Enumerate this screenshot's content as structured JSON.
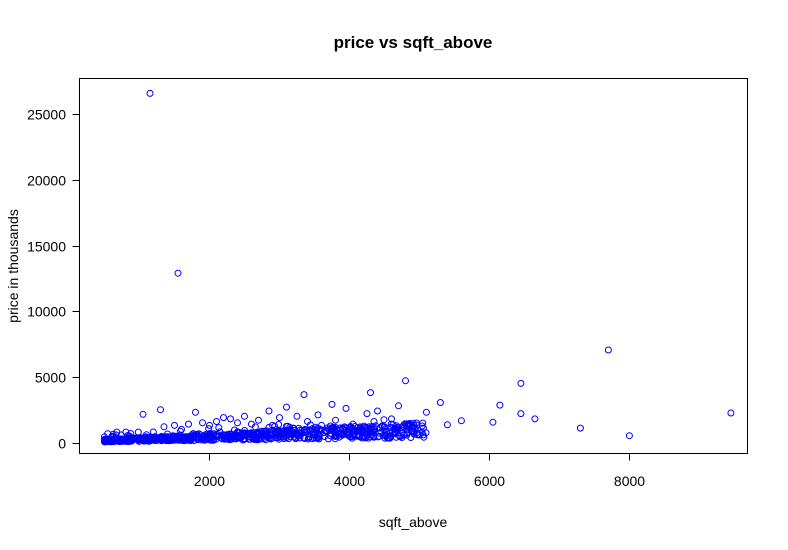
{
  "chart_data": {
    "type": "scatter",
    "title": "price vs sqft_above",
    "xlabel": "sqft_above",
    "ylabel": "price in thousands",
    "xlim": [
      150,
      9680
    ],
    "ylim": [
      -800,
      27700
    ],
    "x_ticks": [
      2000,
      4000,
      6000,
      8000
    ],
    "x_tick_labels": [
      "2000",
      "4000",
      "6000",
      "8000"
    ],
    "y_ticks": [
      0,
      5000,
      10000,
      15000,
      20000,
      25000
    ],
    "y_tick_labels": [
      "0",
      "5000",
      "10000",
      "15000",
      "20000",
      "25000"
    ],
    "grid": false,
    "point_color": "#0000ff",
    "marker": "open-circle",
    "points": [
      [
        1150,
        26600
      ],
      [
        1550,
        12900
      ],
      [
        7700,
        7050
      ],
      [
        4800,
        4700
      ],
      [
        6450,
        4500
      ],
      [
        4300,
        3800
      ],
      [
        3350,
        3650
      ],
      [
        3100,
        2700
      ],
      [
        5300,
        3050
      ],
      [
        6150,
        2850
      ],
      [
        9450,
        2250
      ],
      [
        6450,
        2200
      ],
      [
        6650,
        1800
      ],
      [
        7300,
        1100
      ],
      [
        8000,
        520
      ],
      [
        6050,
        1550
      ],
      [
        5600,
        1650
      ],
      [
        5400,
        1350
      ],
      [
        5100,
        2300
      ],
      [
        4700,
        2800
      ],
      [
        4600,
        1800
      ],
      [
        4950,
        950
      ],
      [
        1300,
        2500
      ],
      [
        1050,
        2150
      ],
      [
        1800,
        2300
      ],
      [
        3950,
        2600
      ],
      [
        3750,
        2900
      ],
      [
        4400,
        2400
      ],
      [
        2850,
        2400
      ],
      [
        3250,
        2000
      ],
      [
        3550,
        2100
      ],
      [
        3800,
        1700
      ],
      [
        4050,
        1400
      ],
      [
        4250,
        2200
      ],
      [
        4500,
        1200
      ],
      [
        4150,
        900
      ],
      [
        3600,
        1300
      ],
      [
        3400,
        1600
      ],
      [
        3000,
        1900
      ],
      [
        2700,
        1700
      ],
      [
        2500,
        2000
      ],
      [
        2300,
        1800
      ],
      [
        2100,
        1600
      ],
      [
        1900,
        1500
      ],
      [
        1700,
        1400
      ],
      [
        1500,
        1300
      ],
      [
        1350,
        1200
      ],
      [
        2600,
        1400
      ],
      [
        2900,
        1300
      ],
      [
        3200,
        1100
      ],
      [
        2200,
        1900
      ],
      [
        2400,
        1500
      ],
      [
        2000,
        1300
      ],
      [
        1600,
        1000
      ],
      [
        4350,
        1600
      ],
      [
        3900,
        1100
      ],
      [
        4850,
        1400
      ],
      [
        5000,
        600
      ]
    ]
  }
}
